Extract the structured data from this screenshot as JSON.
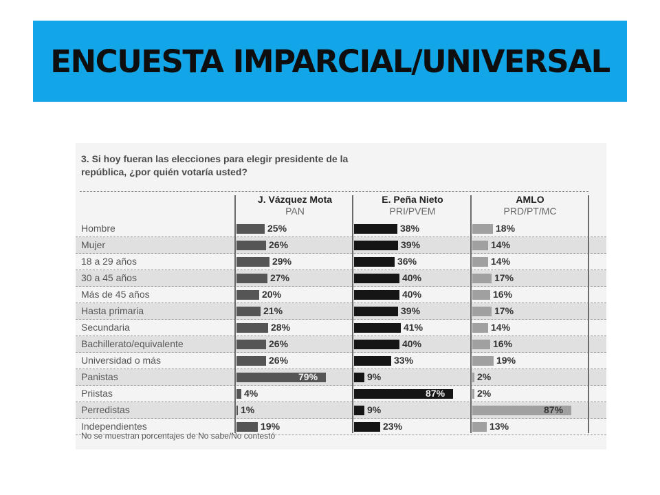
{
  "slide": {
    "title": "ENCUESTA IMPARCIAL/UNIVERSAL"
  },
  "chart_data": {
    "type": "bar",
    "title": "3. Si hoy fueran las elecciones para elegir presidente de la república, ¿por quién votaría usted?",
    "title_line1": "3. Si hoy fueran las elecciones para elegir presidente de la",
    "title_line2": "república, ¿por quién votaría usted?",
    "categories": [
      "Hombre",
      "Mujer",
      "18 a 29 años",
      "30 a 45 años",
      "Más de 45 años",
      "Hasta primaria",
      "Secundaria",
      "Bachillerato/equivalente",
      "Universidad o más",
      "Panistas",
      "Priistas",
      "Perredistas",
      "Independientes"
    ],
    "series": [
      {
        "name": "J. Vázquez Mota",
        "party": "PAN",
        "values": [
          25,
          26,
          29,
          27,
          20,
          21,
          28,
          26,
          26,
          79,
          4,
          1,
          19
        ]
      },
      {
        "name": "E. Peña Nieto",
        "party": "PRI/PVEM",
        "values": [
          38,
          39,
          36,
          40,
          40,
          39,
          41,
          40,
          33,
          9,
          87,
          9,
          23
        ]
      },
      {
        "name": "AMLO",
        "party": "PRD/PT/MC",
        "values": [
          18,
          14,
          14,
          17,
          16,
          17,
          14,
          16,
          19,
          2,
          2,
          87,
          13
        ]
      }
    ],
    "unit": "%",
    "colors": [
      "#555555",
      "#151515",
      "#a0a0a0"
    ],
    "xlim": [
      0,
      100
    ],
    "footnote": "No se muestran porcentajes de No sabe/No contestó"
  }
}
